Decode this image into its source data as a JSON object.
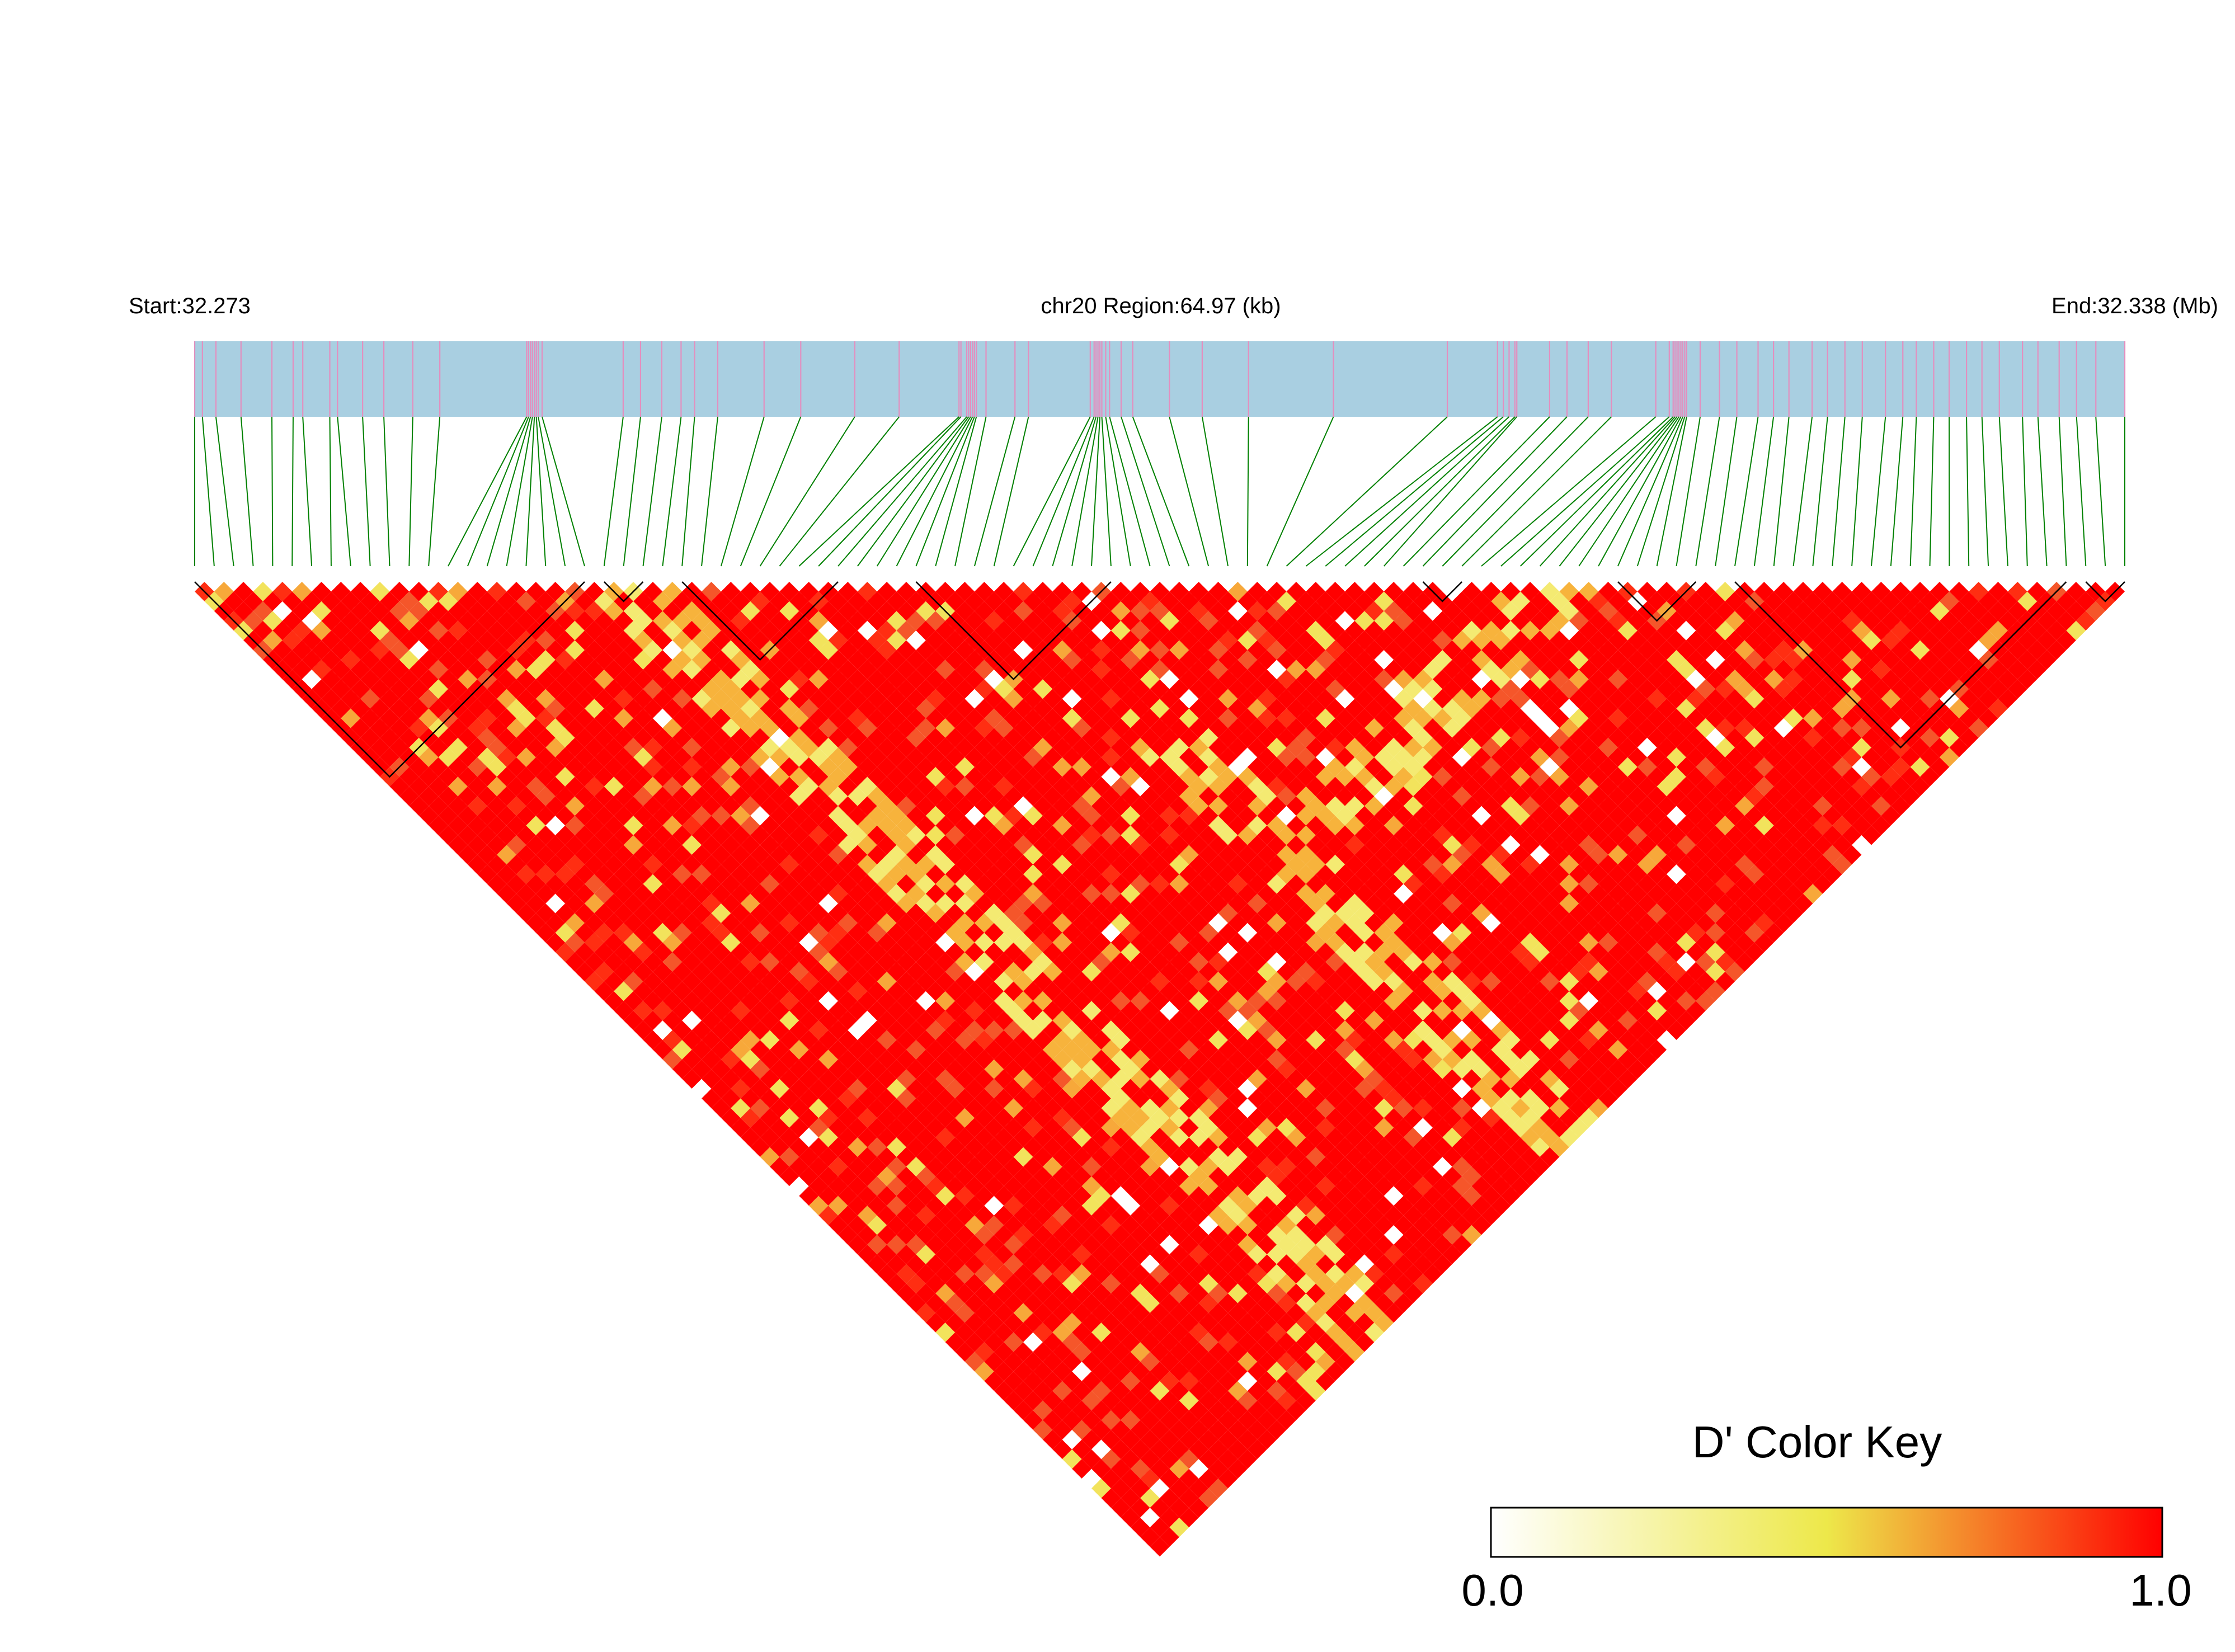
{
  "header": {
    "start_label": "Start:32.273",
    "region_label": "chr20 Region:64.97 (kb)",
    "end_label": "End:32.338 (Mb)"
  },
  "color_key": {
    "title": "D' Color Key",
    "min_label": "0.0",
    "max_label": "1.0",
    "min_value": 0.0,
    "max_value": 1.0,
    "colors": [
      "#ffffff",
      "#ede84a",
      "#ff0000"
    ]
  },
  "colors": {
    "gene_track": "#a9cfe1",
    "snp_tick": "#e38fbf",
    "connector": "#008000",
    "ld_high": "#ff0000",
    "ld_mid": "#f07820",
    "ld_low": "#f1e766",
    "block_outline": "#000000"
  },
  "chart_data": {
    "type": "heatmap",
    "title": "",
    "chromosome": "chr20",
    "region_start_mb": 32.273,
    "region_end_mb": 32.338,
    "region_length_kb": 64.97,
    "snp_count": 100,
    "value_range": [
      0.0,
      1.0
    ],
    "ld_blocks_snp_ranges": [
      [
        0,
        20
      ],
      [
        21,
        23
      ],
      [
        25,
        33
      ],
      [
        37,
        47
      ],
      [
        63,
        65
      ],
      [
        73,
        77
      ],
      [
        79,
        96
      ],
      [
        97,
        99
      ]
    ],
    "snp_position_fractions": [
      0.0,
      0.004,
      0.011,
      0.024,
      0.04,
      0.051,
      0.056,
      0.07,
      0.074,
      0.087,
      0.098,
      0.113,
      0.127,
      0.172,
      0.173,
      0.174,
      0.175,
      0.176,
      0.177,
      0.178,
      0.18,
      0.222,
      0.231,
      0.242,
      0.252,
      0.259,
      0.271,
      0.295,
      0.314,
      0.342,
      0.365,
      0.396,
      0.397,
      0.4,
      0.401,
      0.402,
      0.403,
      0.404,
      0.405,
      0.41,
      0.425,
      0.432,
      0.464,
      0.466,
      0.467,
      0.468,
      0.469,
      0.47,
      0.472,
      0.474,
      0.48,
      0.486,
      0.505,
      0.522,
      0.546,
      0.59,
      0.649,
      0.675,
      0.678,
      0.681,
      0.684,
      0.685,
      0.702,
      0.711,
      0.722,
      0.734,
      0.757,
      0.764,
      0.766,
      0.767,
      0.768,
      0.769,
      0.77,
      0.771,
      0.772,
      0.773,
      0.78,
      0.79,
      0.799,
      0.81,
      0.818,
      0.826,
      0.838,
      0.846,
      0.855,
      0.864,
      0.876,
      0.885,
      0.892,
      0.901,
      0.909,
      0.918,
      0.926,
      0.935,
      0.947,
      0.955,
      0.966,
      0.975,
      0.985,
      1.0
    ]
  }
}
